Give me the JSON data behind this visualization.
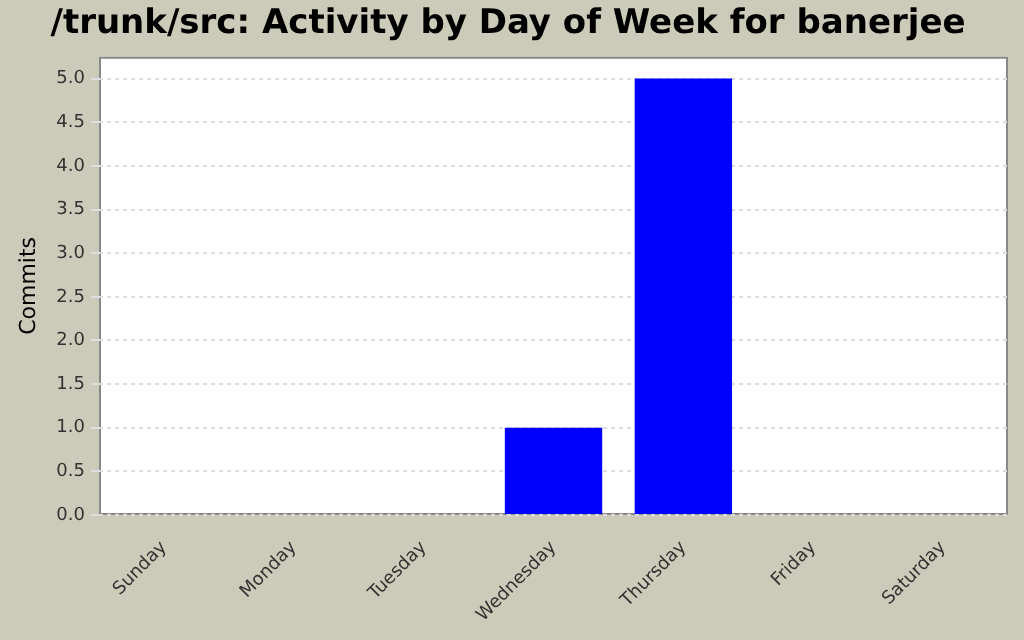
{
  "chart_data": {
    "type": "bar",
    "title": "/trunk/src: Activity by Day of Week for banerjee",
    "ylabel": "Commits",
    "categories": [
      "Sunday",
      "Monday",
      "Tuesday",
      "Wednesday",
      "Thursday",
      "Friday",
      "Saturday"
    ],
    "values": [
      0,
      0,
      0,
      1,
      5,
      0,
      0
    ],
    "color": "#0000ff",
    "ylim": [
      0,
      5.25
    ],
    "yticks": [
      {
        "value": 0,
        "label": "0.0"
      },
      {
        "value": 0.5,
        "label": "0.5"
      },
      {
        "value": 1,
        "label": "1.0"
      },
      {
        "value": 1.5,
        "label": "1.5"
      },
      {
        "value": 2,
        "label": "2.0"
      },
      {
        "value": 2.5,
        "label": "2.5"
      },
      {
        "value": 3,
        "label": "3.0"
      },
      {
        "value": 3.5,
        "label": "3.5"
      },
      {
        "value": 4,
        "label": "4.0"
      },
      {
        "value": 4.5,
        "label": "4.5"
      },
      {
        "value": 5,
        "label": "5.0"
      }
    ],
    "grid": "y",
    "legend": false
  }
}
